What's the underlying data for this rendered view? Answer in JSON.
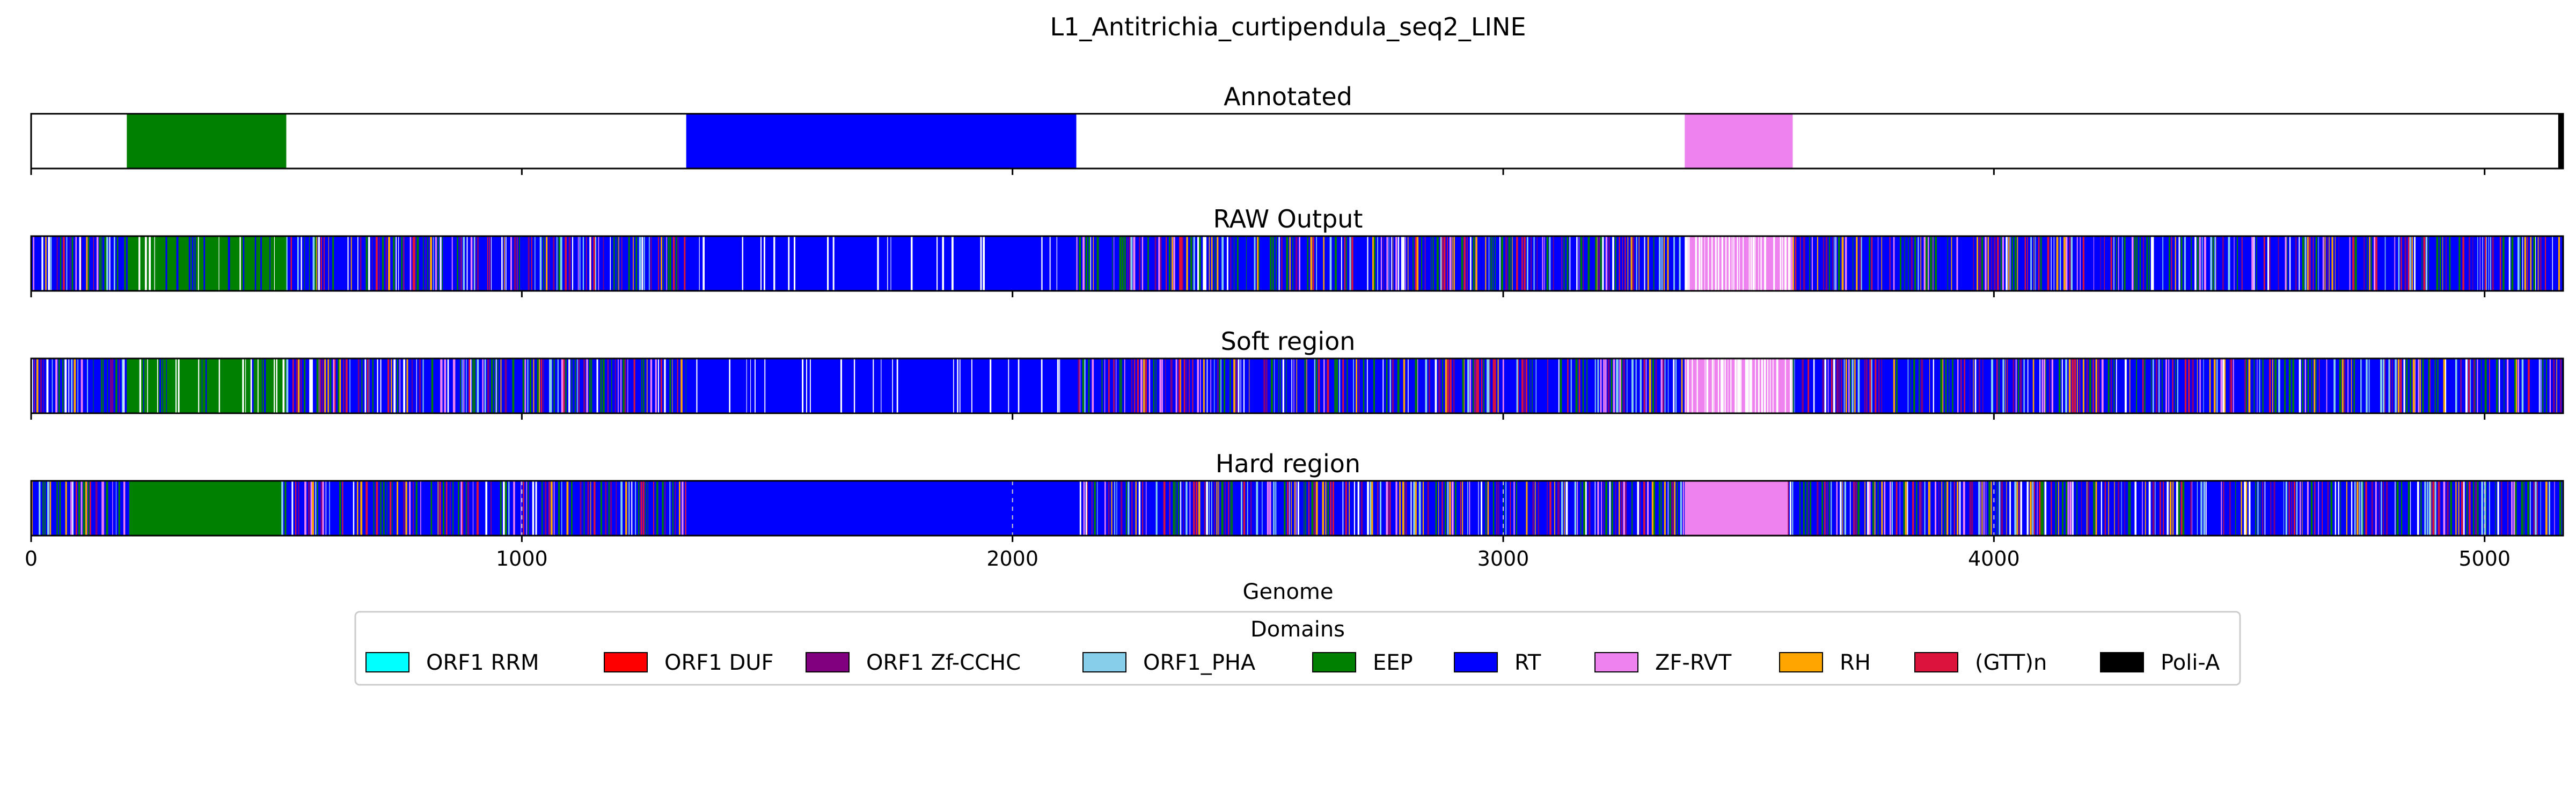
{
  "chart_data": {
    "type": "genome-track",
    "title": "L1_Antitrichia_curtipendula_seq2_LINE",
    "xlabel": "Genome",
    "xlim": [
      0,
      5160
    ],
    "xticks": [
      0,
      1000,
      2000,
      3000,
      4000,
      5000
    ],
    "legend": {
      "title": "Domains",
      "placement": "bottom-center",
      "entries": [
        {
          "name": "ORF1 RRM",
          "color": "#00ffff"
        },
        {
          "name": "ORF1 DUF",
          "color": "#ff0000"
        },
        {
          "name": "ORF1 Zf-CCHC",
          "color": "#800080"
        },
        {
          "name": "ORF1_PHA",
          "color": "#87ceeb"
        },
        {
          "name": "EEP",
          "color": "#008000"
        },
        {
          "name": "RT",
          "color": "#0000ff"
        },
        {
          "name": "ZF-RVT",
          "color": "#ee82ee"
        },
        {
          "name": "RH",
          "color": "#ffa500"
        },
        {
          "name": "(GTT)n",
          "color": "#dc143c"
        },
        {
          "name": "Poli-A",
          "color": "#000000"
        }
      ]
    },
    "panels": [
      {
        "title": "Annotated",
        "segments": [
          {
            "domain": "EEP",
            "start": 195,
            "end": 520
          },
          {
            "domain": "RT",
            "start": 1335,
            "end": 2130
          },
          {
            "domain": "ZF-RVT",
            "start": 3370,
            "end": 3590
          },
          {
            "domain": "Poli-A",
            "start": 5150,
            "end": 5160
          }
        ]
      },
      {
        "title": "RAW Output",
        "segments": [
          {
            "domain": "RT",
            "start": 0,
            "end": 195
          },
          {
            "domain": "EEP",
            "start": 195,
            "end": 520
          },
          {
            "domain": "RT",
            "start": 520,
            "end": 1335
          },
          {
            "domain": "RT",
            "start": 1335,
            "end": 2130
          },
          {
            "domain": "RT",
            "start": 2130,
            "end": 3370
          },
          {
            "domain": "ZF-RVT",
            "start": 3370,
            "end": 3590
          },
          {
            "domain": "RT",
            "start": 3590,
            "end": 5160
          }
        ]
      },
      {
        "title": "Soft region",
        "segments": [
          {
            "domain": "RT",
            "start": 0,
            "end": 195
          },
          {
            "domain": "EEP",
            "start": 195,
            "end": 520
          },
          {
            "domain": "RT",
            "start": 520,
            "end": 1335
          },
          {
            "domain": "RT",
            "start": 1335,
            "end": 2130
          },
          {
            "domain": "RT",
            "start": 2130,
            "end": 3370
          },
          {
            "domain": "ZF-RVT",
            "start": 3370,
            "end": 3590
          },
          {
            "domain": "RT",
            "start": 3590,
            "end": 5160
          }
        ]
      },
      {
        "title": "Hard region",
        "segments": [
          {
            "domain": "RT",
            "start": 0,
            "end": 200
          },
          {
            "domain": "EEP",
            "start": 200,
            "end": 510
          },
          {
            "domain": "RT",
            "start": 510,
            "end": 1335
          },
          {
            "domain": "RT",
            "start": 1335,
            "end": 2130
          },
          {
            "domain": "RT",
            "start": 2130,
            "end": 3370
          },
          {
            "domain": "ZF-RVT",
            "start": 3370,
            "end": 3580
          },
          {
            "domain": "RT",
            "start": 3580,
            "end": 5160
          }
        ]
      }
    ]
  }
}
